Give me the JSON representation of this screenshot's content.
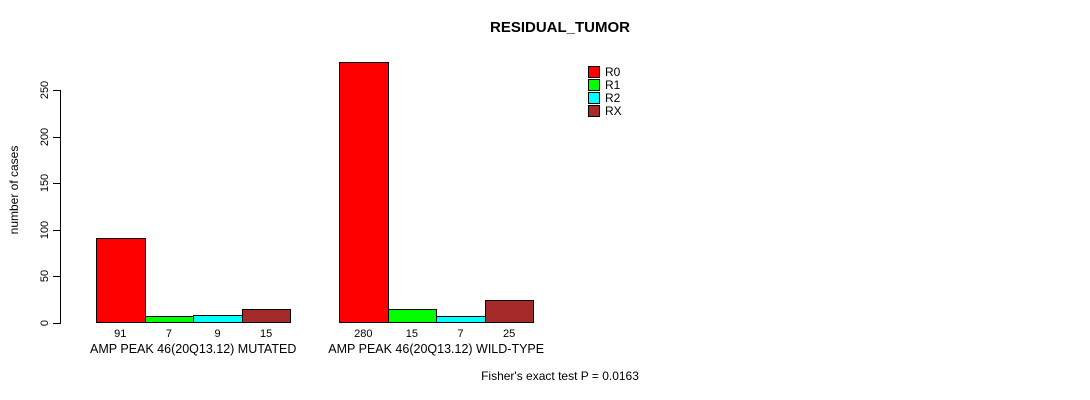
{
  "title": "RESIDUAL_TUMOR",
  "footer": "Fisher's exact test P = 0.0163",
  "chart_data": {
    "type": "bar",
    "title": "RESIDUAL_TUMOR",
    "xlabel": "",
    "ylabel": "number of cases",
    "ylim": [
      0,
      280
    ],
    "yticks": [
      0,
      50,
      100,
      150,
      200,
      250
    ],
    "grid": false,
    "legend_position": "right",
    "series": [
      {
        "name": "R0",
        "color": "#FF0000"
      },
      {
        "name": "R1",
        "color": "#00FF00"
      },
      {
        "name": "R2",
        "color": "#00FFFF"
      },
      {
        "name": "RX",
        "color": "#A52A2A"
      }
    ],
    "groups": [
      {
        "label": "AMP PEAK 46(20Q13.12) MUTATED",
        "values": [
          91,
          7,
          9,
          15
        ]
      },
      {
        "label": "AMP PEAK 46(20Q13.12) WILD-TYPE",
        "values": [
          280,
          15,
          7,
          25
        ]
      }
    ],
    "bar_value_labels": true,
    "annotation": "Fisher's exact test P = 0.0163"
  }
}
